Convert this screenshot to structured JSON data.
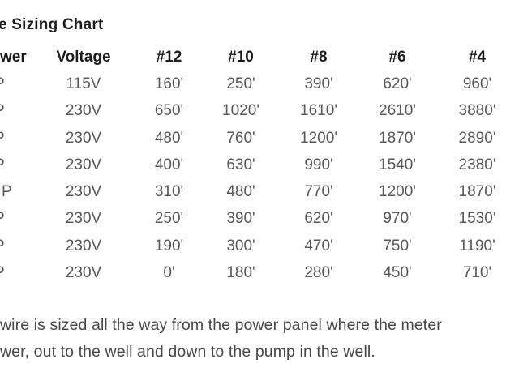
{
  "title": "e Sizing Chart",
  "chart_data": {
    "type": "table",
    "title": "e Sizing Chart",
    "columns": [
      "wer",
      "Voltage",
      "#12",
      "#10",
      "#8",
      "#6",
      "#4"
    ],
    "rows": [
      [
        "P",
        "115V",
        "160'",
        "250'",
        "390'",
        "620'",
        "960'"
      ],
      [
        "P",
        "230V",
        "650'",
        "1020'",
        "1610'",
        "2610'",
        "3880'"
      ],
      [
        "P",
        "230V",
        "480'",
        "760'",
        "1200'",
        "1870'",
        "2890'"
      ],
      [
        "P",
        "230V",
        "400'",
        "630'",
        "990'",
        "1540'",
        "2380'"
      ],
      [
        "P",
        "230V",
        "310'",
        "480'",
        "770'",
        "1200'",
        "1870'"
      ],
      [
        "P",
        "230V",
        "250'",
        "390'",
        "620'",
        "970'",
        "1530'"
      ],
      [
        "P",
        "230V",
        "190'",
        "300'",
        "470'",
        "750'",
        "1190'"
      ],
      [
        "P",
        "230V",
        "0'",
        "180'",
        "280'",
        "450'",
        "710'"
      ]
    ],
    "notes": [
      "wire is sized all the way from the power panel where the meter",
      "wer, out to the well and down to the pump in the well."
    ]
  },
  "colors": {
    "background": "#ffffff",
    "heading_text": "#1c1c1e",
    "data_text": "#58585c",
    "note_text": "#48484c"
  }
}
